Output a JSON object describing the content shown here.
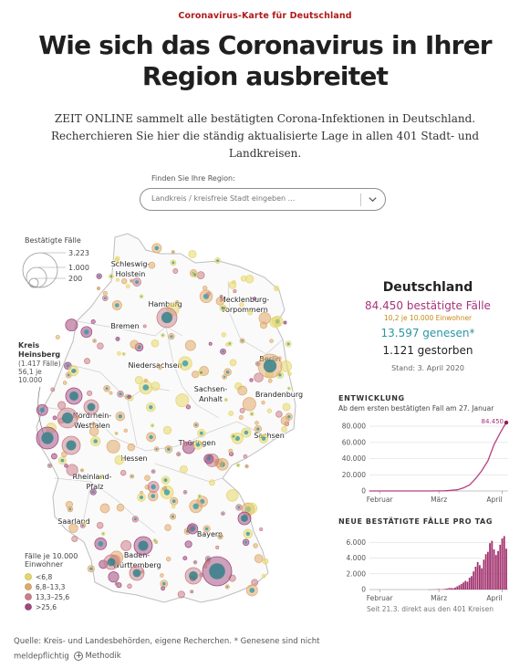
{
  "header": {
    "kicker": "Coronavirus-Karte für Deutschland",
    "title": "Wie sich das Coronavirus in Ihrer Region ausbreitet",
    "intro": "ZEIT ONLINE sammelt alle bestätigten Corona-Infektionen in Deutschland. Recherchieren Sie hier die ständig aktualisierte Lage in allen 401 Stadt- und Landkreisen."
  },
  "search": {
    "label": "Finden Sie Ihre Region:",
    "placeholder": "Landkreis / kreisfreie Stadt eingeben ..."
  },
  "map": {
    "size_legend": {
      "title": "Bestätigte Fälle",
      "values": [
        "3.223",
        "1.000",
        "200"
      ]
    },
    "callout": {
      "name_line1": "Kreis",
      "name_line2": "Heinsberg",
      "detail1": "(1.417 Fälle)",
      "detail2": "56,1 je",
      "detail3": "10.000"
    },
    "color_legend": {
      "title_line1": "Fälle je 10.000",
      "title_line2": "Einwohner",
      "items": [
        {
          "label": "<6,8",
          "color": "#e6d76a"
        },
        {
          "label": "6,8–13,3",
          "color": "#e0a96b"
        },
        {
          "label": "13,3–25,6",
          "color": "#c97f88"
        },
        {
          "label": ">25,6",
          "color": "#a0487d"
        }
      ]
    },
    "state_labels": [
      "Schleswig-",
      "Holstein",
      "Hamburg",
      "Mecklenburg-",
      "Vorpommern",
      "Bremen",
      "Niedersachsen",
      "Berlin",
      "Brandenburg",
      "Sachsen-",
      "Anhalt",
      "Nordrhein-",
      "Westfalen",
      "Thüringen",
      "Sachsen",
      "Hessen",
      "Rheinland-",
      "Pfalz",
      "Saarland",
      "Bayern",
      "Baden-",
      "Württemberg"
    ],
    "colors": {
      "border": "#cfcfcf",
      "recovered": "#2b96a6",
      "recovered_dark": "#2a7d86"
    }
  },
  "panel": {
    "title": "Deutschland",
    "cases": "84.450 bestätigte Fälle",
    "rate": "10,2 je 10.000 Einwohner",
    "recovered": "13.597 genesen*",
    "deaths": "1.121 gestorben",
    "date": "Stand: 3. April 2020",
    "colors": {
      "cases": "#a8327a",
      "rate": "#c58a17",
      "recovered": "#2b96a6"
    }
  },
  "development": {
    "heading": "ENTWICKLUNG",
    "subheading": "Ab dem ersten bestätigten Fall am 27. Januar",
    "end_label": "84.450"
  },
  "daily": {
    "heading": "NEUE BESTÄTIGTE FÄLLE PRO TAG",
    "note": "Seit 21.3. direkt aus den 401 Kreisen"
  },
  "chart_data": [
    {
      "type": "line",
      "title": "ENTWICKLUNG",
      "x": [
        "2020-01-27",
        "2020-02-01",
        "2020-02-10",
        "2020-02-20",
        "2020-02-26",
        "2020-03-01",
        "2020-03-04",
        "2020-03-07",
        "2020-03-10",
        "2020-03-13",
        "2020-03-16",
        "2020-03-19",
        "2020-03-22",
        "2020-03-25",
        "2020-03-28",
        "2020-03-31",
        "2020-04-02",
        "2020-04-03"
      ],
      "series": [
        {
          "values": [
            1,
            8,
            14,
            16,
            20,
            130,
            260,
            800,
            1500,
            3800,
            7300,
            15300,
            24900,
            37300,
            57300,
            71800,
            80500,
            84450
          ]
        }
      ],
      "xticks": [
        "Februar",
        "März",
        "April"
      ],
      "yticks": [
        "0",
        "20.000",
        "40.000",
        "60.000",
        "80.000"
      ],
      "ylim": [
        0,
        88000
      ],
      "grid": true
    },
    {
      "type": "bar",
      "title": "NEUE BESTÄTIGTE FÄLLE PRO TAG",
      "categories": [
        "2020-02-25",
        "2020-02-26",
        "2020-02-27",
        "2020-02-28",
        "2020-02-29",
        "2020-03-01",
        "2020-03-02",
        "2020-03-03",
        "2020-03-04",
        "2020-03-05",
        "2020-03-06",
        "2020-03-07",
        "2020-03-08",
        "2020-03-09",
        "2020-03-10",
        "2020-03-11",
        "2020-03-12",
        "2020-03-13",
        "2020-03-14",
        "2020-03-15",
        "2020-03-16",
        "2020-03-17",
        "2020-03-18",
        "2020-03-19",
        "2020-03-20",
        "2020-03-21",
        "2020-03-22",
        "2020-03-23",
        "2020-03-24",
        "2020-03-25",
        "2020-03-26",
        "2020-03-27",
        "2020-03-28",
        "2020-03-29",
        "2020-03-30",
        "2020-03-31",
        "2020-04-01",
        "2020-04-02",
        "2020-04-03"
      ],
      "values": [
        2,
        5,
        20,
        15,
        40,
        60,
        30,
        50,
        80,
        120,
        180,
        200,
        150,
        250,
        400,
        550,
        700,
        900,
        1100,
        1000,
        1500,
        1700,
        2300,
        2900,
        3500,
        3100,
        2700,
        3800,
        4500,
        4800,
        5900,
        6200,
        5100,
        4400,
        4900,
        5700,
        6500,
        6800,
        5200
      ],
      "xticks": [
        "Februar",
        "März",
        "April"
      ],
      "yticks": [
        "0",
        "2.000",
        "4.000",
        "6.000"
      ],
      "ylim": [
        0,
        7200
      ],
      "grid": true
    }
  ],
  "footer": {
    "source": "Quelle: Kreis- und Landesbehörden, eigene Recherchen. * Genesene sind nicht meldepflichtig",
    "methodik": "Methodik"
  }
}
